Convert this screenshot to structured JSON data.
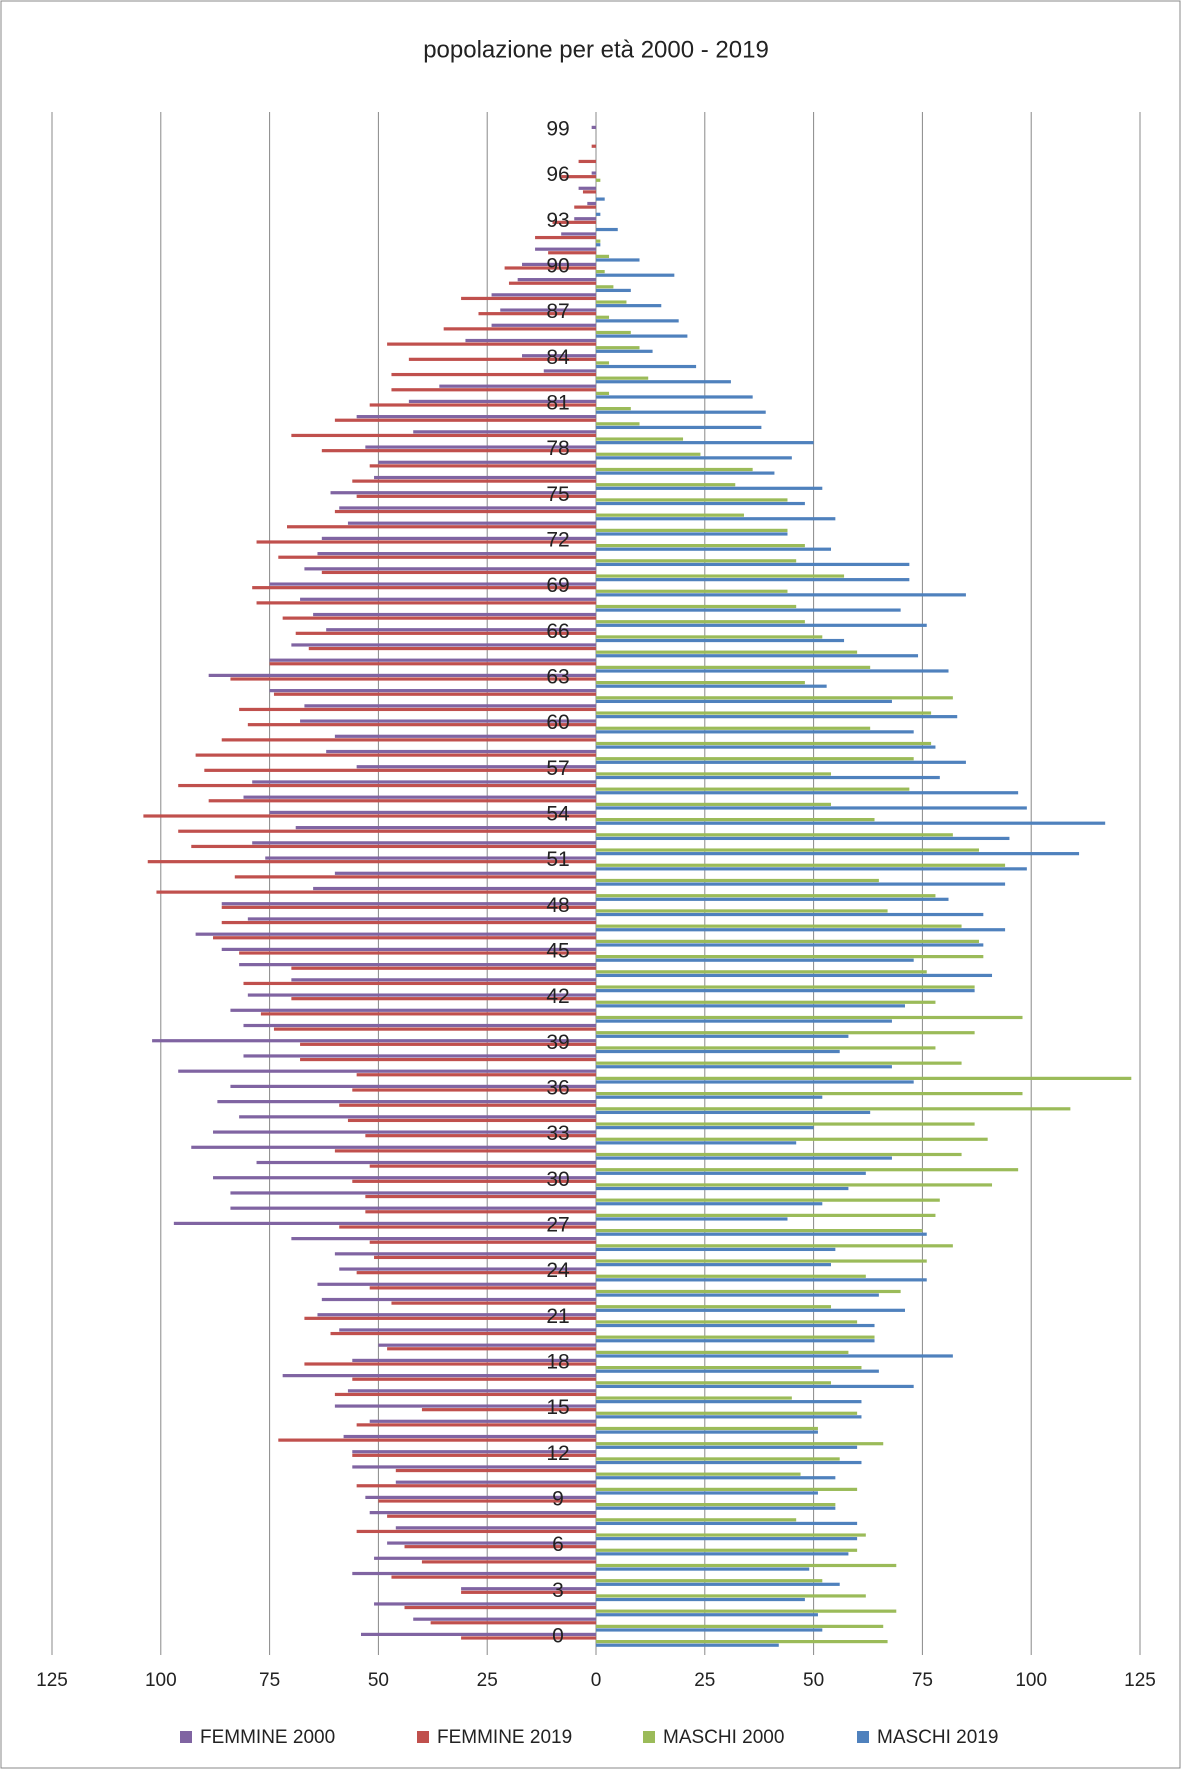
{
  "chart_data": {
    "type": "hbar",
    "title": "popolazione per età 2000 - 2019",
    "categories": [
      0,
      null,
      null,
      3,
      null,
      null,
      6,
      null,
      null,
      9,
      null,
      null,
      12,
      null,
      null,
      15,
      null,
      null,
      18,
      null,
      null,
      21,
      null,
      null,
      24,
      null,
      null,
      27,
      null,
      null,
      30,
      null,
      null,
      33,
      null,
      null,
      36,
      null,
      null,
      39,
      null,
      null,
      42,
      null,
      null,
      45,
      null,
      null,
      48,
      null,
      null,
      51,
      null,
      null,
      54,
      null,
      null,
      57,
      null,
      null,
      60,
      null,
      null,
      63,
      null,
      null,
      66,
      null,
      null,
      69,
      null,
      null,
      72,
      null,
      null,
      75,
      null,
      null,
      78,
      null,
      null,
      81,
      null,
      null,
      84,
      null,
      null,
      87,
      null,
      null,
      90,
      null,
      null,
      93,
      null,
      null,
      96,
      null,
      null,
      99
    ],
    "xlim": [
      -125,
      125
    ],
    "xticks": [
      {
        "value": -125,
        "label": "125"
      },
      {
        "value": -100,
        "label": "100"
      },
      {
        "value": -75,
        "label": "75"
      },
      {
        "value": -50,
        "label": "50"
      },
      {
        "value": -25,
        "label": "25"
      },
      0,
      25,
      50,
      75,
      100,
      125
    ],
    "grid": true,
    "series": [
      {
        "name": "FEMMINE 2000",
        "color": "#8064a2",
        "values": [
          -54,
          -42,
          -51,
          -31,
          -56,
          -51,
          -48,
          -46,
          -52,
          -53,
          -46,
          -56,
          -56,
          -58,
          -52,
          -60,
          -57,
          -72,
          -56,
          -50,
          -59,
          -64,
          -63,
          -64,
          -59,
          -60,
          -70,
          -97,
          -84,
          -84,
          -88,
          -78,
          -93,
          -88,
          -82,
          -87,
          -84,
          -96,
          -81,
          -102,
          -81,
          -84,
          -80,
          -70,
          -82,
          -86,
          -92,
          -80,
          -86,
          -65,
          -60,
          -76,
          -79,
          -69,
          -75,
          -81,
          -79,
          -55,
          -62,
          -60,
          -68,
          -67,
          -75,
          -89,
          -75,
          -70,
          -62,
          -65,
          -68,
          -75,
          -67,
          -64,
          -63,
          -57,
          -59,
          -61,
          -51,
          -50,
          -53,
          -42,
          -55,
          -43,
          -36,
          -12,
          -17,
          -30,
          -24,
          -22,
          -24,
          -18,
          -17,
          -14,
          -8,
          -5,
          -2,
          -4,
          -1,
          0,
          0,
          -1
        ]
      },
      {
        "name": "FEMMINE 2019",
        "color": "#c0504d",
        "values": [
          -31,
          -38,
          -44,
          -31,
          -47,
          -40,
          -44,
          -55,
          -48,
          -50,
          -55,
          -46,
          -56,
          -73,
          -55,
          -40,
          -60,
          -56,
          -67,
          -48,
          -61,
          -67,
          -47,
          -52,
          -55,
          -51,
          -52,
          -59,
          -53,
          -53,
          -56,
          -52,
          -60,
          -53,
          -57,
          -59,
          -56,
          -55,
          -68,
          -68,
          -74,
          -77,
          -70,
          -81,
          -70,
          -82,
          -88,
          -86,
          -86,
          -101,
          -83,
          -103,
          -93,
          -96,
          -104,
          -89,
          -96,
          -90,
          -92,
          -86,
          -80,
          -82,
          -74,
          -84,
          -75,
          -66,
          -69,
          -72,
          -78,
          -79,
          -63,
          -73,
          -78,
          -71,
          -60,
          -55,
          -56,
          -52,
          -63,
          -70,
          -60,
          -52,
          -47,
          -47,
          -43,
          -48,
          -35,
          -27,
          -31,
          -20,
          -21,
          -11,
          -14,
          -10,
          -5,
          -3,
          -8,
          -4,
          -1,
          0
        ]
      },
      {
        "name": "MASCHI 2000",
        "color": "#9bbb59",
        "values": [
          67,
          66,
          69,
          62,
          52,
          69,
          60,
          62,
          46,
          55,
          60,
          47,
          56,
          66,
          51,
          60,
          45,
          54,
          61,
          58,
          64,
          60,
          54,
          70,
          62,
          76,
          82,
          75,
          78,
          79,
          91,
          97,
          84,
          90,
          87,
          109,
          98,
          123,
          84,
          78,
          87,
          98,
          78,
          87,
          76,
          89,
          88,
          84,
          67,
          78,
          65,
          94,
          88,
          82,
          64,
          54,
          72,
          54,
          73,
          77,
          63,
          77,
          82,
          48,
          63,
          60,
          52,
          48,
          46,
          44,
          57,
          46,
          48,
          44,
          34,
          44,
          32,
          36,
          24,
          20,
          10,
          8,
          3,
          12,
          3,
          10,
          8,
          3,
          7,
          4,
          2,
          3,
          1,
          0,
          0,
          0,
          1,
          0,
          0,
          0
        ]
      },
      {
        "name": "MASCHI 2019",
        "color": "#4f81bd",
        "values": [
          42,
          52,
          51,
          48,
          56,
          49,
          58,
          60,
          60,
          55,
          51,
          55,
          61,
          60,
          51,
          61,
          61,
          73,
          65,
          82,
          64,
          64,
          71,
          65,
          76,
          54,
          55,
          76,
          44,
          52,
          58,
          62,
          68,
          46,
          50,
          63,
          52,
          73,
          68,
          56,
          58,
          68,
          71,
          87,
          91,
          73,
          89,
          94,
          89,
          81,
          94,
          99,
          111,
          95,
          117,
          99,
          97,
          79,
          85,
          78,
          73,
          83,
          68,
          53,
          81,
          74,
          57,
          76,
          70,
          85,
          72,
          72,
          54,
          44,
          55,
          48,
          52,
          41,
          45,
          50,
          38,
          39,
          36,
          31,
          23,
          13,
          21,
          19,
          15,
          8,
          18,
          10,
          1,
          5,
          1,
          2,
          0,
          0,
          0,
          0
        ]
      }
    ]
  }
}
